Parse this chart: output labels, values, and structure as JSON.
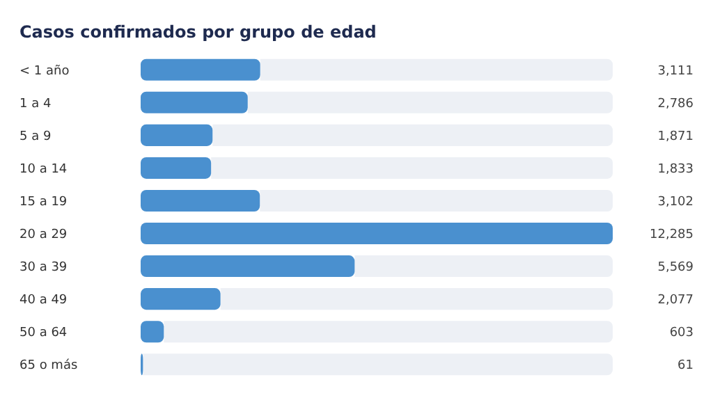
{
  "chart_data": {
    "type": "bar",
    "orientation": "horizontal",
    "title": "Casos confirmados por grupo de edad",
    "categories": [
      "< 1 año",
      "1 a 4",
      "5 a 9",
      "10 a 14",
      "15 a 19",
      "20 a 29",
      "30 a 39",
      "40 a 49",
      "50 a 64",
      "65 o más"
    ],
    "values": [
      3111,
      2786,
      1871,
      1833,
      3102,
      12285,
      5569,
      2077,
      603,
      61
    ],
    "value_labels": [
      "3,111",
      "2,786",
      "1,871",
      "1,833",
      "3,102",
      "12,285",
      "5,569",
      "2,077",
      "603",
      "61"
    ],
    "color": "#4a90cf"
  }
}
